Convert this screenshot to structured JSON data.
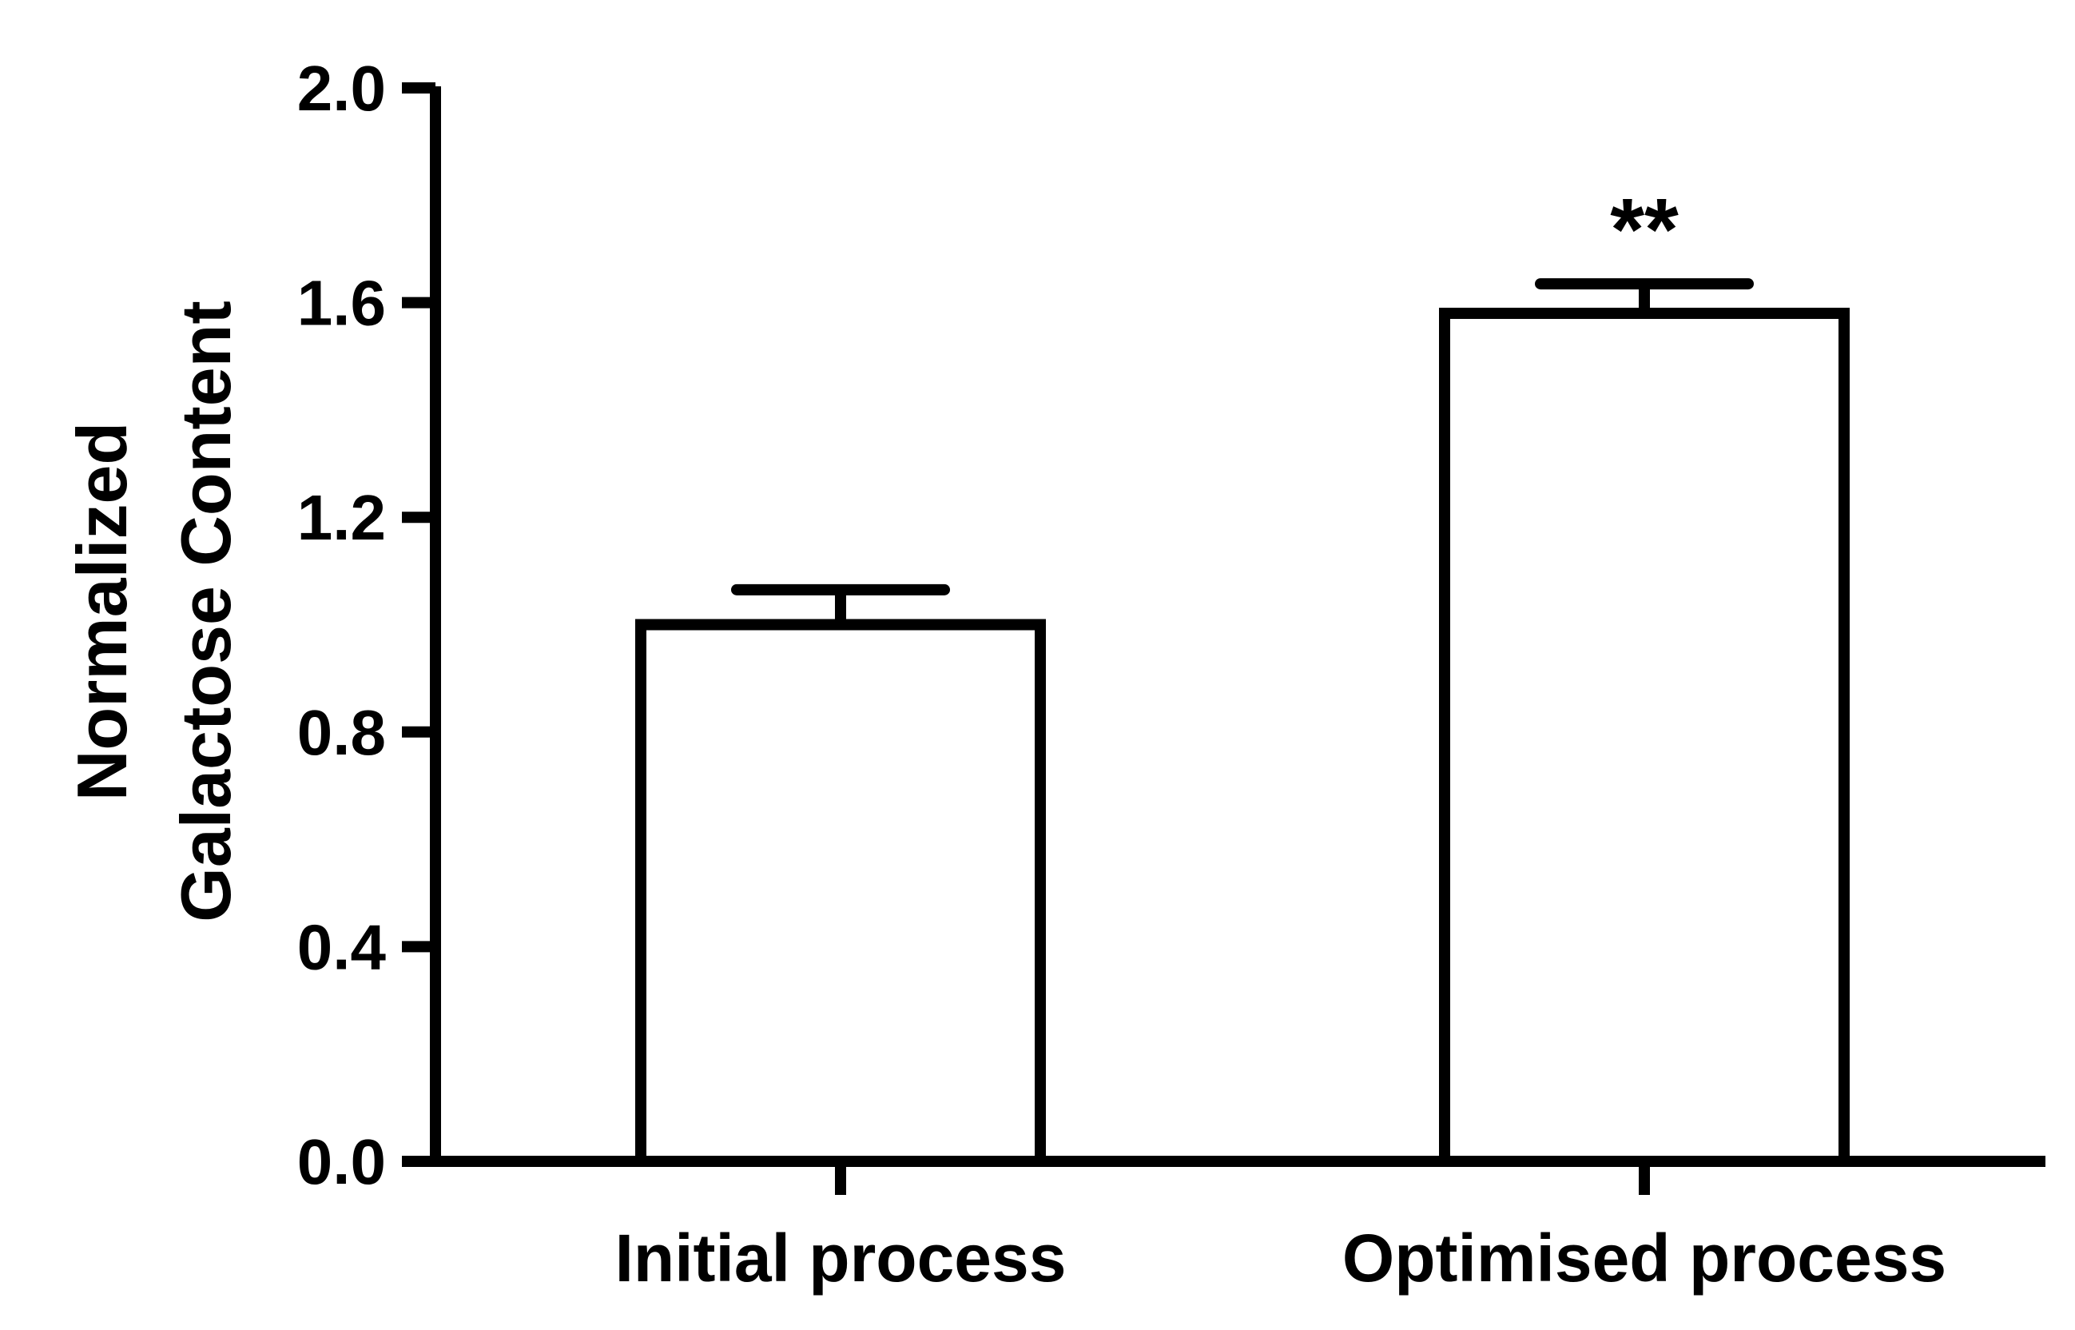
{
  "chart_data": {
    "type": "bar",
    "title": "",
    "xlabel": "",
    "ylabel_lines": [
      "Normalized",
      "Galactose Content"
    ],
    "categories": [
      "Initial process",
      "Optimised process"
    ],
    "values": [
      1.0,
      1.58
    ],
    "errors": [
      0.065,
      0.055
    ],
    "annotations": [
      "",
      "**"
    ],
    "ylim": [
      0,
      2.0
    ],
    "yticks": [
      0.0,
      0.4,
      0.8,
      1.2,
      1.6,
      2.0
    ],
    "ytick_labels": [
      "0.0",
      "0.4",
      "0.8",
      "1.2",
      "1.6",
      "2.0"
    ],
    "grid": false,
    "bar_fill": "#ffffff",
    "bar_stroke": "#000000"
  }
}
